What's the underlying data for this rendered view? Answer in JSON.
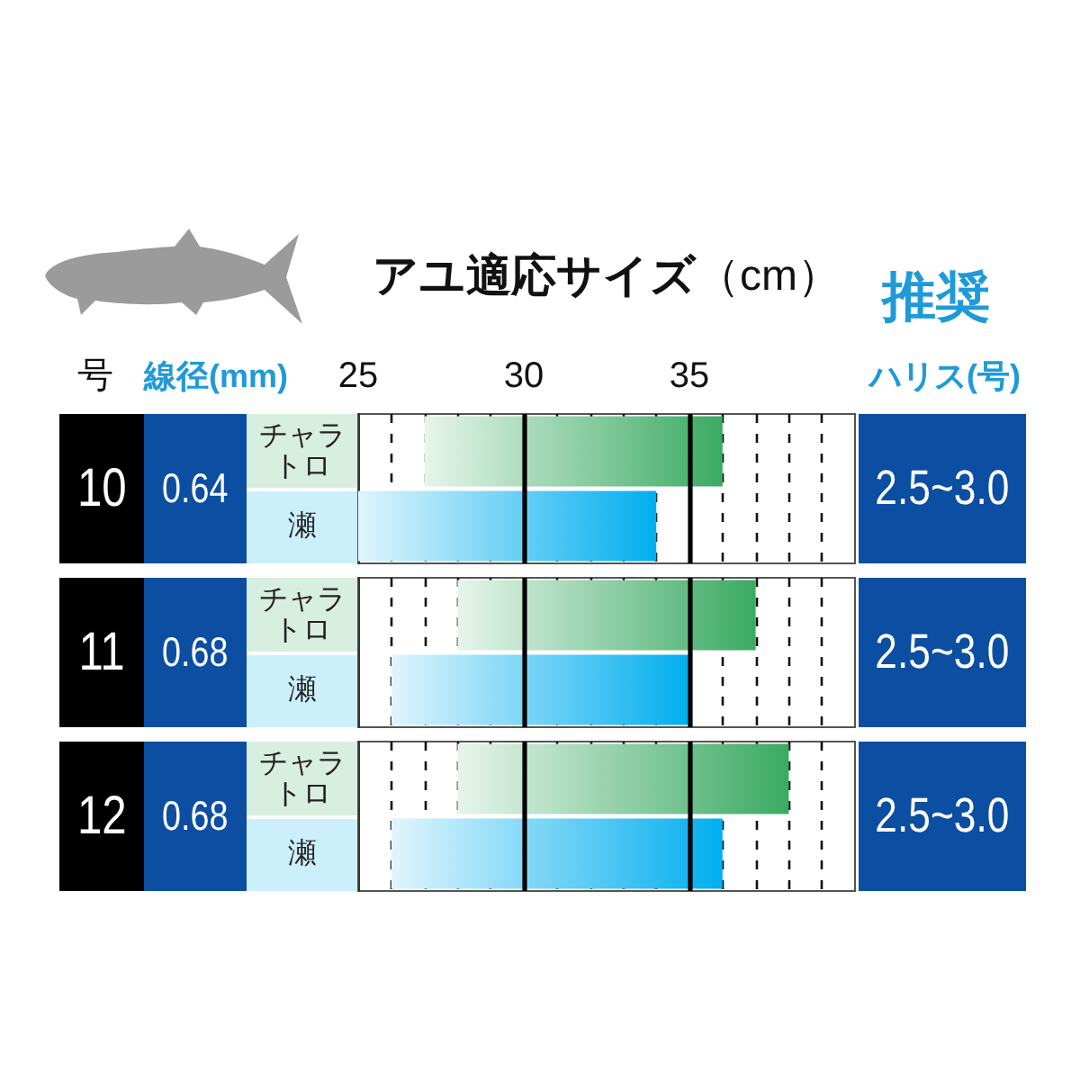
{
  "chart_data": [
    {
      "type": "bar",
      "orientation": "horizontal",
      "xlabel": "アユ適応サイズ（cm）",
      "categories": [
        "チャラトロ",
        "瀬"
      ],
      "base": [
        27,
        25
      ],
      "values": [
        9,
        9
      ],
      "colors": [
        "#3aaa62",
        "#00aeef"
      ],
      "xlim": [
        25,
        40
      ],
      "xticks": [
        25,
        {
          "value": 26,
          "label": null
        },
        {
          "value": 27,
          "label": null
        },
        {
          "value": 28,
          "label": null
        },
        {
          "value": 29,
          "label": null
        },
        30,
        {
          "value": 31,
          "label": null
        },
        {
          "value": 32,
          "label": null
        },
        {
          "value": 33,
          "label": null
        },
        {
          "value": 34,
          "label": null
        },
        35,
        {
          "value": 36,
          "label": null
        },
        {
          "value": 37,
          "label": null
        },
        {
          "value": 38,
          "label": null
        },
        {
          "value": 39,
          "label": null
        }
      ],
      "grid": "x",
      "annotations": [
        "号",
        "線径(mm)",
        "推奨",
        "ハリス(号)",
        "10",
        "0.64",
        "2.5~3.0"
      ]
    },
    {
      "type": "bar",
      "orientation": "horizontal",
      "categories": [
        "チャラトロ",
        "瀬"
      ],
      "base": [
        28,
        26
      ],
      "values": [
        9,
        9
      ],
      "colors": [
        "#3aaa62",
        "#00aeef"
      ],
      "xlim": [
        25,
        40
      ],
      "xticks": [
        25,
        {
          "value": 26,
          "label": null
        },
        {
          "value": 27,
          "label": null
        },
        {
          "value": 28,
          "label": null
        },
        {
          "value": 29,
          "label": null
        },
        30,
        {
          "value": 31,
          "label": null
        },
        {
          "value": 32,
          "label": null
        },
        {
          "value": 33,
          "label": null
        },
        {
          "value": 34,
          "label": null
        },
        35,
        {
          "value": 36,
          "label": null
        },
        {
          "value": 37,
          "label": null
        },
        {
          "value": 38,
          "label": null
        },
        {
          "value": 39,
          "label": null
        }
      ],
      "grid": "x",
      "tick_labels": "y",
      "annotations": [
        "11",
        "0.68",
        "2.5~3.0"
      ]
    },
    {
      "type": "bar",
      "orientation": "horizontal",
      "categories": [
        "チャラトロ",
        "瀬"
      ],
      "base": [
        28,
        26
      ],
      "values": [
        10,
        10
      ],
      "colors": [
        "#3aaa62",
        "#00aeef"
      ],
      "xlim": [
        25,
        40
      ],
      "xticks": [
        25,
        {
          "value": 26,
          "label": null
        },
        {
          "value": 27,
          "label": null
        },
        {
          "value": 28,
          "label": null
        },
        {
          "value": 29,
          "label": null
        },
        30,
        {
          "value": 31,
          "label": null
        },
        {
          "value": 32,
          "label": null
        },
        {
          "value": 33,
          "label": null
        },
        {
          "value": 34,
          "label": null
        },
        35,
        {
          "value": 36,
          "label": null
        },
        {
          "value": 37,
          "label": null
        },
        {
          "value": 38,
          "label": null
        },
        {
          "value": 39,
          "label": null
        }
      ],
      "grid": "x",
      "tick_labels": "y",
      "annotations": [
        "12",
        "0.68",
        "2.5~3.0"
      ]
    }
  ]
}
